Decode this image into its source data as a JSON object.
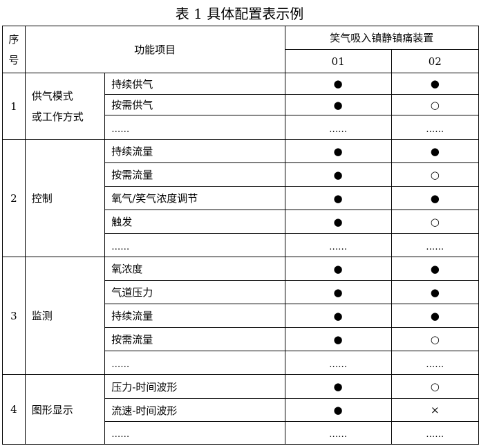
{
  "title": "表 1 具体配置表示例",
  "header": {
    "seq": "序号",
    "seq_line1": "序",
    "seq_line2": "号",
    "function": "功能项目",
    "device": "笑气吸入镇静镇痛装置",
    "models": [
      "01",
      "02"
    ]
  },
  "legend_symbols": {
    "filled": "●",
    "open": "○",
    "none": "×",
    "ellipsis": "……"
  },
  "groups": [
    {
      "seq": "1",
      "category_line1": "供气模式",
      "category_line2": "或工作方式",
      "items": [
        {
          "name": "持续供气",
          "m01": "●",
          "m02": "●"
        },
        {
          "name": "按需供气",
          "m01": "●",
          "m02": "○"
        },
        {
          "name": "……",
          "m01": "……",
          "m02": "……"
        }
      ]
    },
    {
      "seq": "2",
      "category": "控制",
      "items": [
        {
          "name": "持续流量",
          "m01": "●",
          "m02": "●"
        },
        {
          "name": "按需流量",
          "m01": "●",
          "m02": "○"
        },
        {
          "name": "氧气/笑气浓度调节",
          "m01": "●",
          "m02": "●"
        },
        {
          "name": "触发",
          "m01": "●",
          "m02": "○"
        },
        {
          "name": "……",
          "m01": "……",
          "m02": "……"
        }
      ]
    },
    {
      "seq": "3",
      "category": "监测",
      "items": [
        {
          "name": "氧浓度",
          "m01": "●",
          "m02": "●"
        },
        {
          "name": "气道压力",
          "m01": "●",
          "m02": "●"
        },
        {
          "name": "持续流量",
          "m01": "●",
          "m02": "●"
        },
        {
          "name": "按需流量",
          "m01": "●",
          "m02": "○"
        },
        {
          "name": "……",
          "m01": "……",
          "m02": "……"
        }
      ]
    },
    {
      "seq": "4",
      "category": "图形显示",
      "items": [
        {
          "name": "压力-时间波形",
          "m01": "●",
          "m02": "○"
        },
        {
          "name": "流速-时间波形",
          "m01": "●",
          "m02": "×"
        },
        {
          "name": "……",
          "m01": "……",
          "m02": "……"
        }
      ]
    }
  ]
}
